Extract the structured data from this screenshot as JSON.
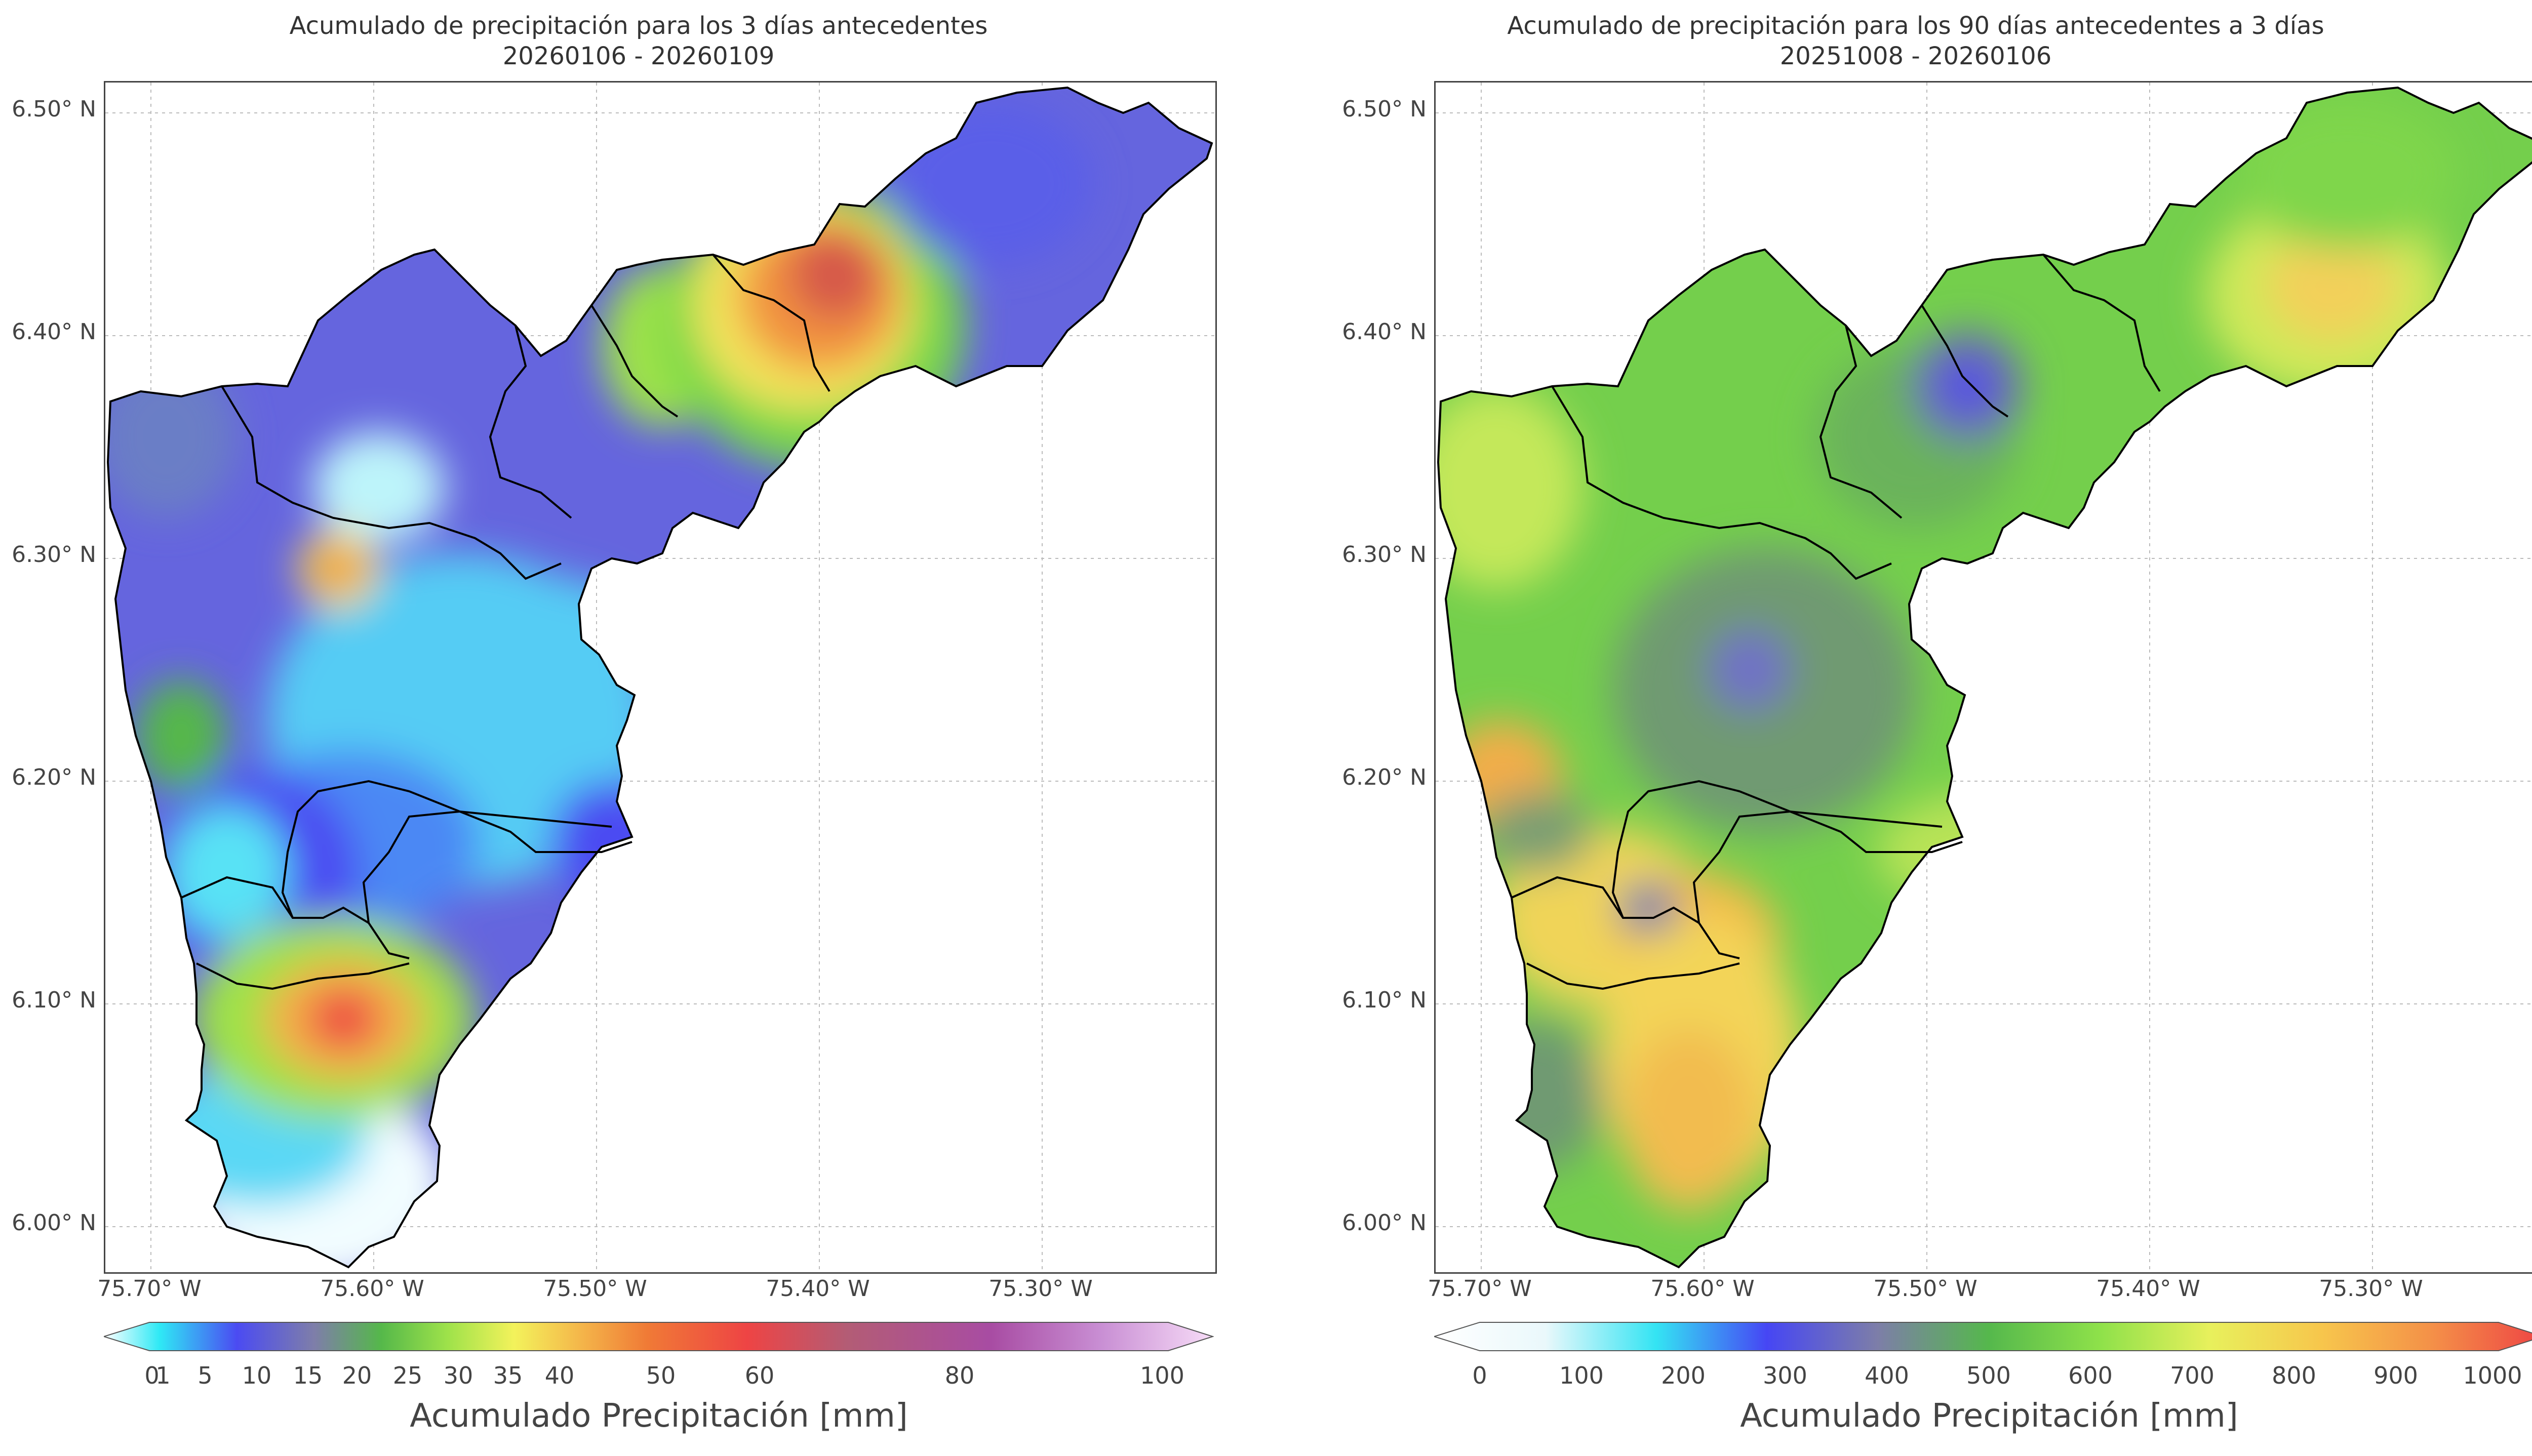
{
  "left_map": {
    "title": "Acumulado de precipitación para los 3 días antecedentes",
    "subtitle": "20260106 - 20260109",
    "lat_labels": [
      "6.50° N",
      "6.40° N",
      "6.30° N",
      "6.20° N",
      "6.10° N",
      "6.00° N"
    ],
    "lon_labels": [
      "75.70° W",
      "75.60° W",
      "75.50° W",
      "75.40° W",
      "75.30° W"
    ],
    "colorbar": {
      "ticks": [
        "0",
        "1",
        "5",
        "10",
        "15",
        "20",
        "25",
        "30",
        "35",
        "40",
        "50",
        "60",
        "80",
        "100"
      ],
      "label": "Acumulado Precipitación [mm]",
      "colors": [
        "#ffffff",
        "#2fe9f5",
        "#4b4bf2",
        "#7e7ea9",
        "#55b84a",
        "#9ee24a",
        "#f3f25b",
        "#f4b64a",
        "#f07a36",
        "#ee4444",
        "#b35c75",
        "#a84ca3",
        "#c98fd4",
        "#f7dcf7"
      ]
    }
  },
  "right_map": {
    "title": "Acumulado de precipitación para los 90 días antecedentes a 3 días",
    "subtitle": "20251008 - 20260106",
    "lat_labels": [
      "6.50° N",
      "6.40° N",
      "6.30° N",
      "6.20° N",
      "6.10° N",
      "6.00° N"
    ],
    "lon_labels": [
      "75.70° W",
      "75.60° W",
      "75.50° W",
      "75.40° W",
      "75.30° W"
    ],
    "colorbar": {
      "ticks": [
        "0",
        "100",
        "200",
        "300",
        "400",
        "500",
        "600",
        "700",
        "800",
        "900",
        "1000"
      ],
      "label": "Acumulado Precipitación [mm]",
      "colors": [
        "#ffffff",
        "#eaf8fb",
        "#34e4f3",
        "#4646f4",
        "#7d7ea8",
        "#55b84c",
        "#8ee14a",
        "#e8f05c",
        "#f7c64c",
        "#f49048",
        "#ee4444"
      ]
    }
  }
}
